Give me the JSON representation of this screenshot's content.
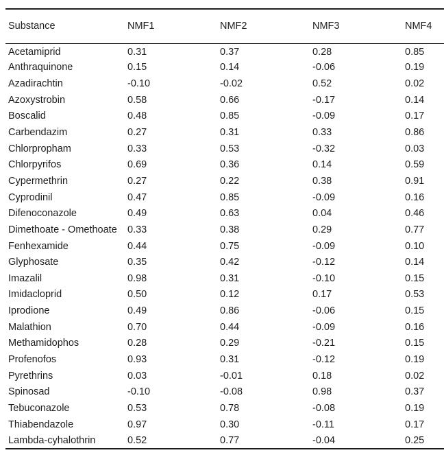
{
  "colors": {
    "background": "#ffffff",
    "text": "#1d1d1d",
    "rule": "#1d1d1d"
  },
  "table": {
    "columns": [
      "Substance",
      "NMF1",
      "NMF2",
      "NMF3",
      "NMF4"
    ],
    "rows": [
      {
        "substance": "Acetamiprid",
        "values": [
          "0.31",
          "0.37",
          "0.28",
          "0.85"
        ],
        "bold": [
          false,
          false,
          false,
          true
        ]
      },
      {
        "substance": "Anthraquinone",
        "values": [
          "0.15",
          "0.14",
          "-0.06",
          "0.19"
        ],
        "bold": [
          false,
          false,
          false,
          false
        ]
      },
      {
        "substance": "Azadirachtin",
        "values": [
          "-0.10",
          "-0.02",
          "0.52",
          "0.02"
        ],
        "bold": [
          false,
          false,
          true,
          false
        ]
      },
      {
        "substance": "Azoxystrobin",
        "values": [
          "0.58",
          "0.66",
          "-0.17",
          "0.14"
        ],
        "bold": [
          false,
          true,
          false,
          false
        ]
      },
      {
        "substance": "Boscalid",
        "values": [
          "0.48",
          "0.85",
          "-0.09",
          "0.17"
        ],
        "bold": [
          false,
          true,
          false,
          false
        ]
      },
      {
        "substance": "Carbendazim",
        "values": [
          "0.27",
          "0.31",
          "0.33",
          "0.86"
        ],
        "bold": [
          false,
          false,
          false,
          true
        ]
      },
      {
        "substance": "Chlorpropham",
        "values": [
          "0.33",
          "0.53",
          "-0.32",
          "0.03"
        ],
        "bold": [
          false,
          false,
          false,
          false
        ]
      },
      {
        "substance": "Chlorpyrifos",
        "values": [
          "0.69",
          "0.36",
          "0.14",
          "0.59"
        ],
        "bold": [
          true,
          false,
          false,
          false
        ]
      },
      {
        "substance": "Cypermethrin",
        "values": [
          "0.27",
          "0.22",
          "0.38",
          "0.91"
        ],
        "bold": [
          false,
          false,
          false,
          true
        ]
      },
      {
        "substance": "Cyprodinil",
        "values": [
          "0.47",
          "0.85",
          "-0.09",
          "0.16"
        ],
        "bold": [
          false,
          true,
          false,
          false
        ]
      },
      {
        "substance": "Difenoconazole",
        "values": [
          "0.49",
          "0.63",
          "0.04",
          "0.46"
        ],
        "bold": [
          false,
          true,
          false,
          false
        ]
      },
      {
        "substance": "Dimethoate - Omethoate",
        "values": [
          "0.33",
          "0.38",
          "0.29",
          "0.77"
        ],
        "bold": [
          false,
          false,
          false,
          true
        ]
      },
      {
        "substance": "Fenhexamide",
        "values": [
          "0.44",
          "0.75",
          "-0.09",
          "0.10"
        ],
        "bold": [
          false,
          true,
          false,
          false
        ]
      },
      {
        "substance": "Glyphosate",
        "values": [
          "0.35",
          "0.42",
          "-0.12",
          "0.14"
        ],
        "bold": [
          false,
          false,
          false,
          false
        ]
      },
      {
        "substance": "Imazalil",
        "values": [
          "0.98",
          "0.31",
          "-0.10",
          "0.15"
        ],
        "bold": [
          true,
          false,
          false,
          false
        ]
      },
      {
        "substance": "Imidacloprid",
        "values": [
          "0.50",
          "0.12",
          "0.17",
          "0.53"
        ],
        "bold": [
          false,
          false,
          false,
          false
        ]
      },
      {
        "substance": "Iprodione",
        "values": [
          "0.49",
          "0.86",
          "-0.06",
          "0.15"
        ],
        "bold": [
          false,
          true,
          false,
          false
        ]
      },
      {
        "substance": "Malathion",
        "values": [
          "0.70",
          "0.44",
          "-0.09",
          "0.16"
        ],
        "bold": [
          true,
          false,
          false,
          false
        ]
      },
      {
        "substance": "Methamidophos",
        "values": [
          "0.28",
          "0.29",
          "-0.21",
          "0.15"
        ],
        "bold": [
          false,
          false,
          false,
          false
        ]
      },
      {
        "substance": "Profenofos",
        "values": [
          "0.93",
          "0.31",
          "-0.12",
          "0.19"
        ],
        "bold": [
          true,
          false,
          false,
          false
        ]
      },
      {
        "substance": "Pyrethrins",
        "values": [
          "0.03",
          "-0.01",
          "0.18",
          "0.02"
        ],
        "bold": [
          false,
          false,
          false,
          false
        ]
      },
      {
        "substance": "Spinosad",
        "values": [
          "-0.10",
          "-0.08",
          "0.98",
          "0.37"
        ],
        "bold": [
          false,
          false,
          true,
          false
        ]
      },
      {
        "substance": "Tebuconazole",
        "values": [
          "0.53",
          "0.78",
          "-0.08",
          "0.19"
        ],
        "bold": [
          false,
          true,
          false,
          false
        ]
      },
      {
        "substance": "Thiabendazole",
        "values": [
          "0.97",
          "0.30",
          "-0.11",
          "0.17"
        ],
        "bold": [
          true,
          false,
          false,
          false
        ]
      },
      {
        "substance": "Lambda-cyhalothrin",
        "values": [
          "0.52",
          "0.77",
          "-0.04",
          "0.25"
        ],
        "bold": [
          false,
          true,
          false,
          false
        ]
      }
    ]
  }
}
